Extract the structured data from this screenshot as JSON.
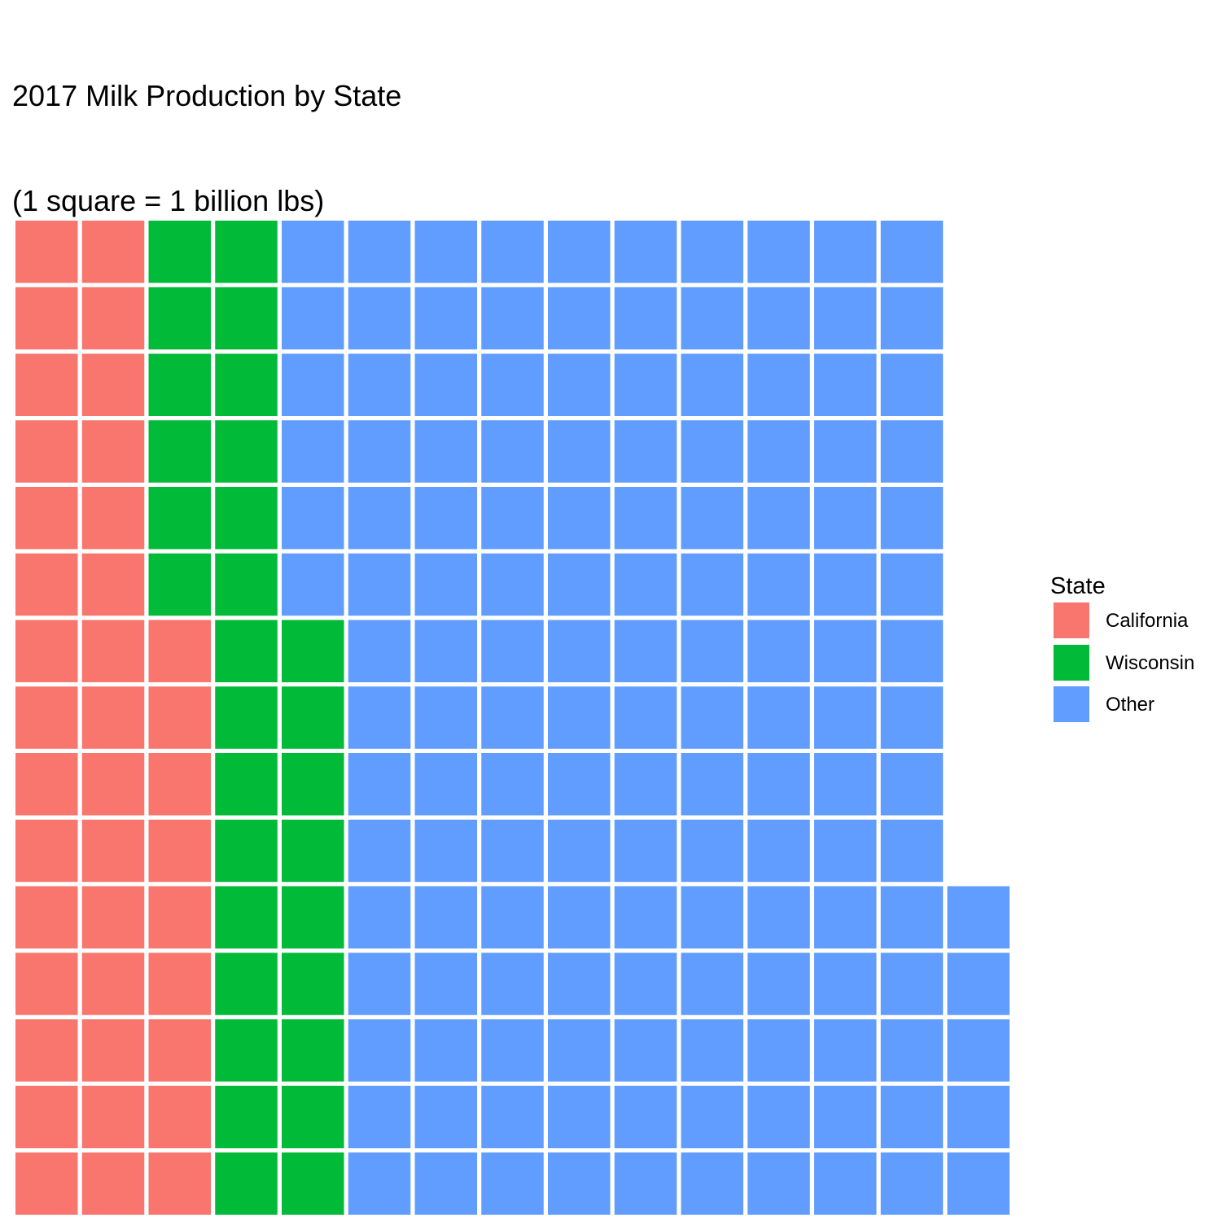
{
  "title": [
    "2017 Milk Production by State",
    "(1 square = 1 billion lbs)"
  ],
  "chart_data": {
    "type": "waffle",
    "title": "2017 Milk Production by State (1 square = 1 billion lbs)",
    "unit_per_square": "1 billion lbs",
    "rows": 15,
    "legend_title": "State",
    "legend_position": "right",
    "grid": false,
    "series": [
      {
        "name": "California",
        "value": 39,
        "color": "#F8766D"
      },
      {
        "name": "Wisconsin",
        "value": 30,
        "color": "#00BA38"
      },
      {
        "name": "Other",
        "value": 146,
        "color": "#619CFF"
      }
    ]
  }
}
